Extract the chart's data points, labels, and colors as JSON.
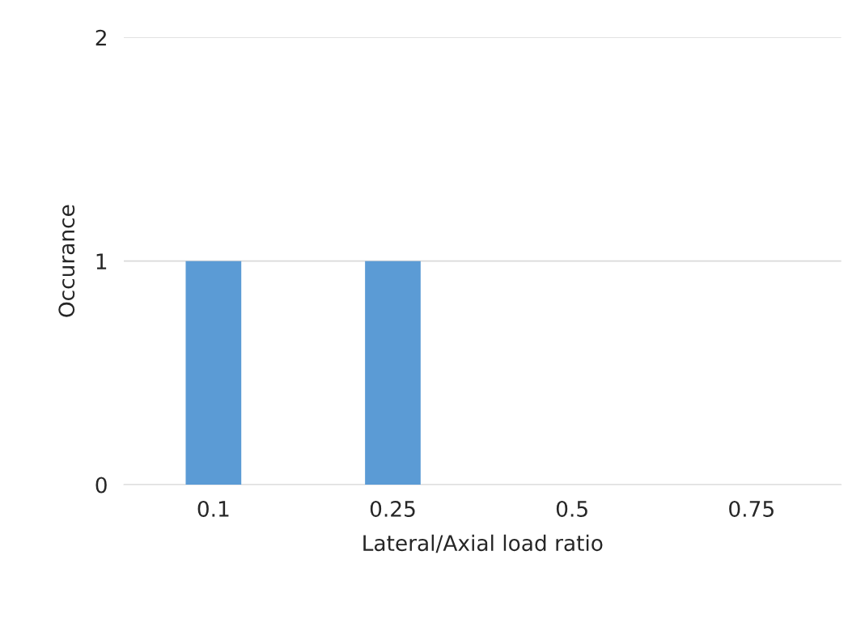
{
  "chart_data": {
    "type": "bar",
    "xlabel": "Lateral/Axial load ratio",
    "ylabel": "Occurance",
    "categories": [
      "0.1",
      "0.25",
      "0.5",
      "0.75"
    ],
    "values": [
      1,
      1,
      0,
      0
    ],
    "color": "#5b9bd5",
    "ylim": [
      0,
      2
    ],
    "yticks": [
      0,
      1,
      2
    ],
    "grid": "y",
    "legend": false
  }
}
